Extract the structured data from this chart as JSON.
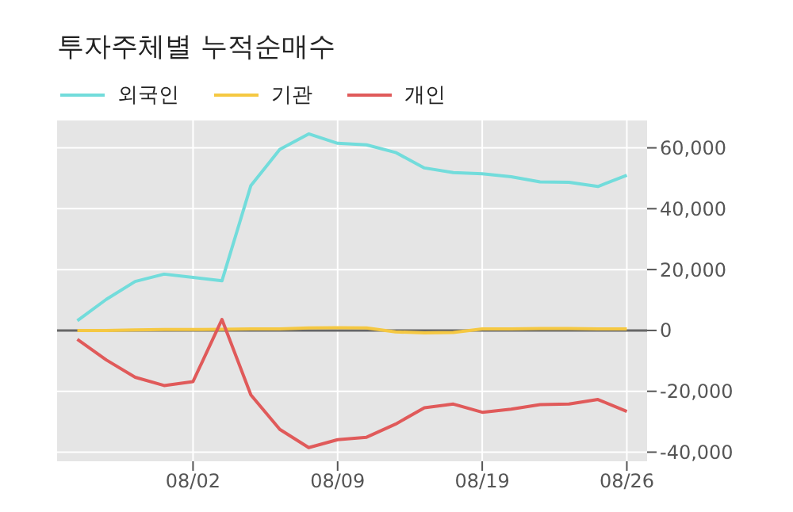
{
  "chart_data": {
    "type": "line",
    "title": "투자주체별 누적순매수",
    "categories": [
      null,
      null,
      null,
      null,
      "08/02",
      null,
      null,
      null,
      null,
      "08/09",
      null,
      null,
      null,
      null,
      "08/19",
      null,
      null,
      null,
      null,
      "08/26"
    ],
    "series": [
      {
        "name": "외국인",
        "color": "#72dcdb",
        "values": [
          3200,
          10200,
          16100,
          18500,
          17400,
          16300,
          47600,
          59500,
          64600,
          61500,
          61000,
          58500,
          53400,
          51900,
          51500,
          50500,
          48800,
          48700,
          47300,
          51000
        ]
      },
      {
        "name": "기관",
        "color": "#f5c842",
        "values": [
          0,
          0,
          200,
          300,
          300,
          400,
          500,
          500,
          800,
          900,
          800,
          -500,
          -800,
          -700,
          500,
          500,
          600,
          600,
          500,
          500
        ]
      },
      {
        "name": "개인",
        "color": "#e05a5a",
        "values": [
          -2900,
          -9700,
          -15400,
          -18100,
          -16800,
          3600,
          -21200,
          -32500,
          -38500,
          -35900,
          -35100,
          -30800,
          -25400,
          -24200,
          -26900,
          -25900,
          -24400,
          -24200,
          -22700,
          -26600
        ]
      }
    ],
    "ylim": [
      -43000,
      69000
    ],
    "yticks": [
      {
        "value": -40000,
        "label": "-40,000"
      },
      {
        "value": -20000,
        "label": "-20,000"
      },
      0,
      {
        "value": 20000,
        "label": "20,000"
      },
      {
        "value": 40000,
        "label": "40,000"
      },
      {
        "value": 60000,
        "label": "60,000"
      }
    ],
    "ref_lines": [
      {
        "axis": "y",
        "value": 0,
        "color": "#666666"
      }
    ],
    "grid": true,
    "legend": "top left",
    "marker": "none",
    "line_style": "solid"
  }
}
